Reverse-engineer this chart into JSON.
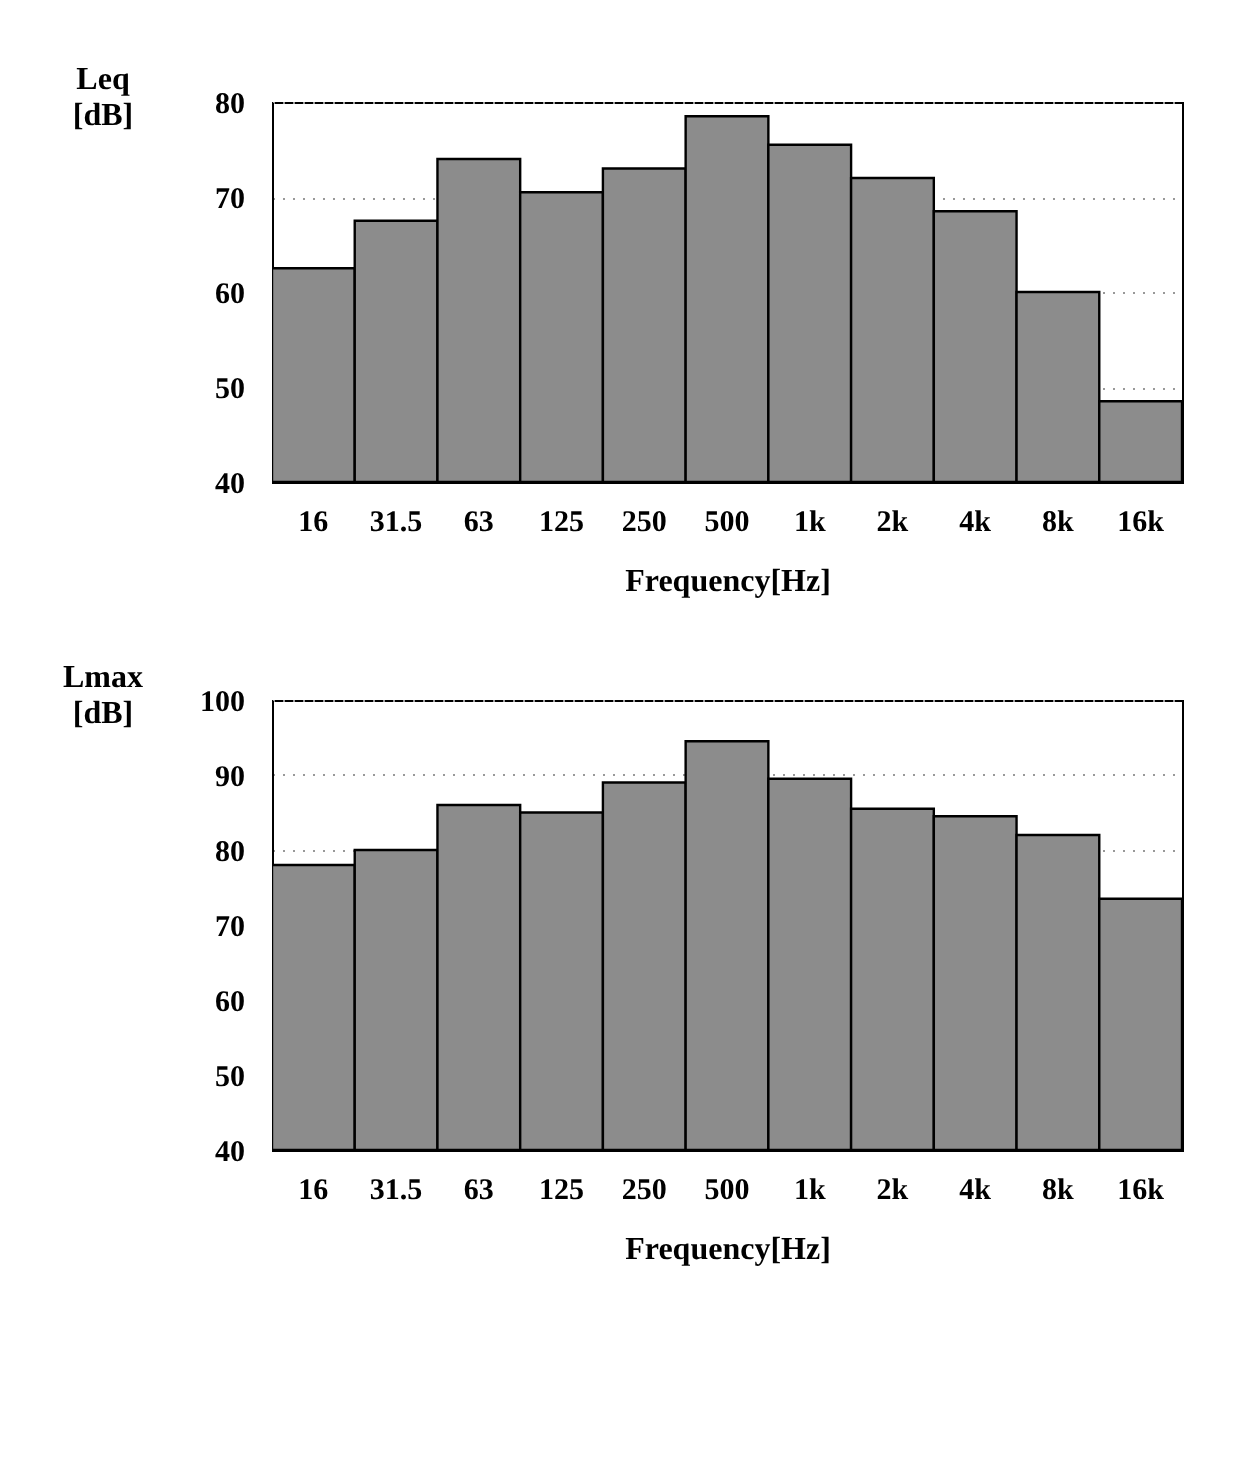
{
  "chart_data": [
    {
      "type": "bar",
      "categories": [
        "16",
        "31.5",
        "63",
        "125",
        "250",
        "500",
        "1k",
        "2k",
        "4k",
        "8k",
        "16k"
      ],
      "values": [
        62.5,
        67.5,
        74,
        70.5,
        73,
        78.5,
        75.5,
        72,
        68.5,
        60,
        48.5
      ],
      "color": "#8c8c8c",
      "xlabel": "Frequency[Hz]",
      "ylabel": "Leq [dB]",
      "ylim": [
        40,
        80
      ],
      "yticks": [
        40,
        50,
        60,
        70,
        80
      ],
      "grid": "y"
    },
    {
      "type": "bar",
      "categories": [
        "16",
        "31.5",
        "63",
        "125",
        "250",
        "500",
        "1k",
        "2k",
        "4k",
        "8k",
        "16k"
      ],
      "values": [
        78,
        80,
        86,
        85,
        89,
        94.5,
        89.5,
        85.5,
        84.5,
        82,
        73.5
      ],
      "color": "#8c8c8c",
      "xlabel": "Frequency[Hz]",
      "ylabel": "Lmax [dB]",
      "ylim": [
        40,
        100
      ],
      "yticks": [
        40,
        50,
        60,
        70,
        80,
        90,
        100
      ],
      "grid": "y"
    }
  ]
}
